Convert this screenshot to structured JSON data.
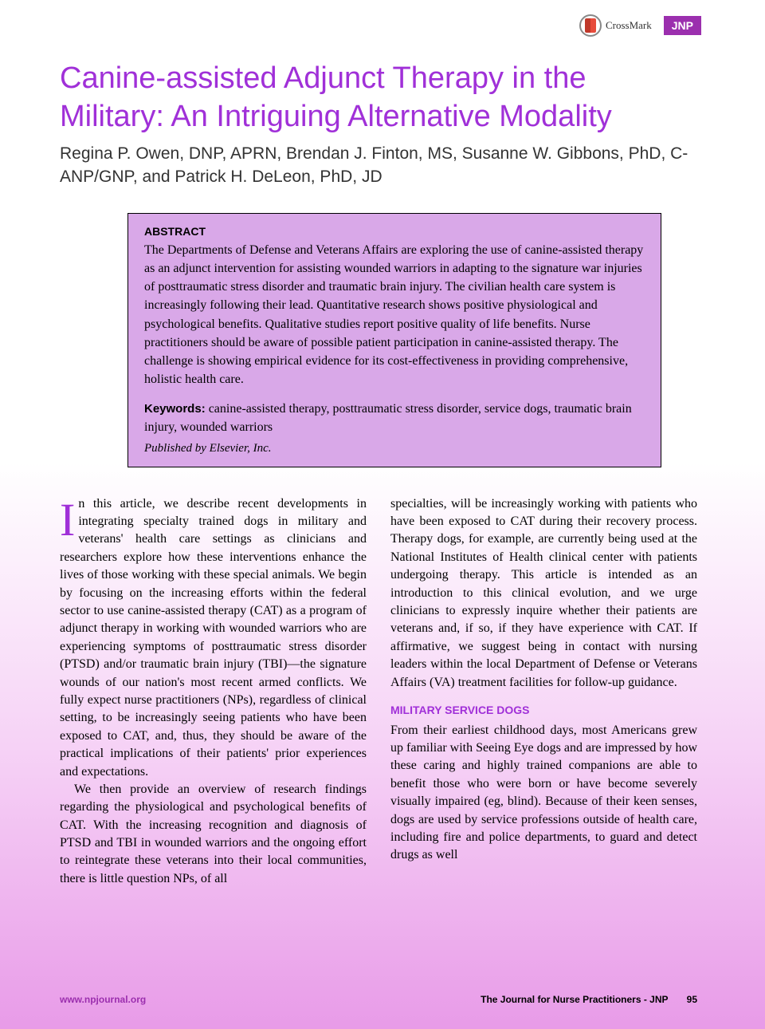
{
  "header": {
    "crossmark_label": "CrossMark",
    "journal_badge": "JNP"
  },
  "title": "Canine-assisted Adjunct Therapy in the Military: An Intriguing Alternative Modality",
  "authors": "Regina P. Owen, DNP, APRN, Brendan J. Finton, MS, Susanne W. Gibbons, PhD, C-ANP/GNP, and Patrick H. DeLeon, PhD, JD",
  "abstract": {
    "heading": "ABSTRACT",
    "text": "The Departments of Defense and Veterans Affairs are exploring the use of canine-assisted therapy as an adjunct intervention for assisting wounded warriors in adapting to the signature war injuries of posttraumatic stress disorder and traumatic brain injury. The civilian health care system is increasingly following their lead. Quantitative research shows positive physiological and psychological benefits. Qualitative studies report positive quality of life benefits. Nurse practitioners should be aware of possible patient participation in canine-assisted therapy. The challenge is showing empirical evidence for its cost-effectiveness in providing comprehensive, holistic health care.",
    "keywords_label": "Keywords:",
    "keywords": " canine-assisted therapy, posttraumatic stress disorder, service dogs, traumatic brain injury, wounded warriors",
    "published_by": "Published by Elsevier, Inc."
  },
  "body": {
    "col1": {
      "dropcap": "I",
      "p1": "n this article, we describe recent developments in integrating specialty trained dogs in military and veterans' health care settings as clinicians and researchers explore how these interventions enhance the lives of those working with these special animals. We begin by focusing on the increasing efforts within the federal sector to use canine-assisted therapy (CAT) as a program of adjunct therapy in working with wounded warriors who are experiencing symptoms of posttraumatic stress disorder (PTSD) and/or traumatic brain injury (TBI)—the signature wounds of our nation's most recent armed conflicts. We fully expect nurse practitioners (NPs), regardless of clinical setting, to be increasingly seeing patients who have been exposed to CAT, and, thus, they should be aware of the practical implications of their patients' prior experiences and expectations.",
      "p2": "We then provide an overview of research findings regarding the physiological and psychological benefits of CAT. With the increasing recognition and diagnosis of PTSD and TBI in wounded warriors and the ongoing effort to reintegrate these veterans into their local communities, there is little question NPs, of all"
    },
    "col2": {
      "p1": "specialties, will be increasingly working with patients who have been exposed to CAT during their recovery process. Therapy dogs, for example, are currently being used at the National Institutes of Health clinical center with patients undergoing therapy. This article is intended as an introduction to this clinical evolution, and we urge clinicians to expressly inquire whether their patients are veterans and, if so, if they have experience with CAT. If affirmative, we suggest being in contact with nursing leaders within the local Department of Defense or Veterans Affairs (VA) treatment facilities for follow-up guidance.",
      "section_heading": "MILITARY SERVICE DOGS",
      "p2": "From their earliest childhood days, most Americans grew up familiar with Seeing Eye dogs and are impressed by how these caring and highly trained companions are able to benefit those who were born or have become severely visually impaired (eg, blind). Because of their keen senses, dogs are used by service professions outside of health care, including fire and police departments, to guard and detect drugs as well"
    }
  },
  "footer": {
    "url": "www.npjournal.org",
    "journal": "The Journal for Nurse Practitioners - JNP",
    "page": "95"
  },
  "colors": {
    "accent": "#a030d8",
    "badge": "#9b2fae",
    "abstract_bg": "#d9a8e8",
    "gradient_end": "#e89be8"
  }
}
